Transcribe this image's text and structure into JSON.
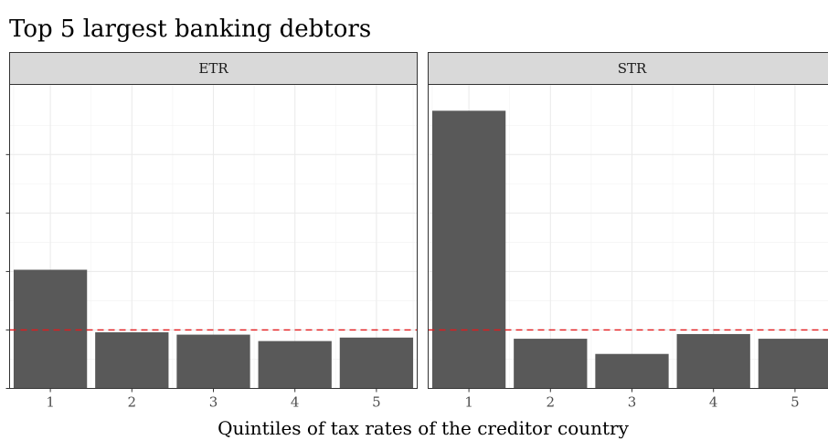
{
  "chart_data": {
    "type": "bar",
    "title": "Top 5 largest banking debtors",
    "xlabel": "Quintiles of tax rates of the creditor country",
    "ylabel": "",
    "categories": [
      "1",
      "2",
      "3",
      "4",
      "5"
    ],
    "ylim": [
      0,
      5.2
    ],
    "y_ticks": [
      0,
      1,
      2,
      3,
      4
    ],
    "y_tick_labels_visible": false,
    "reference_line": {
      "y": 1,
      "style": "dashed",
      "color": "#e41a1c"
    },
    "grid": true,
    "bar_color": "#595959",
    "panels": [
      {
        "name": "ETR",
        "values": [
          2.03,
          0.96,
          0.92,
          0.81,
          0.87
        ]
      },
      {
        "name": "STR",
        "values": [
          4.75,
          0.85,
          0.59,
          0.93,
          0.85
        ]
      }
    ]
  }
}
